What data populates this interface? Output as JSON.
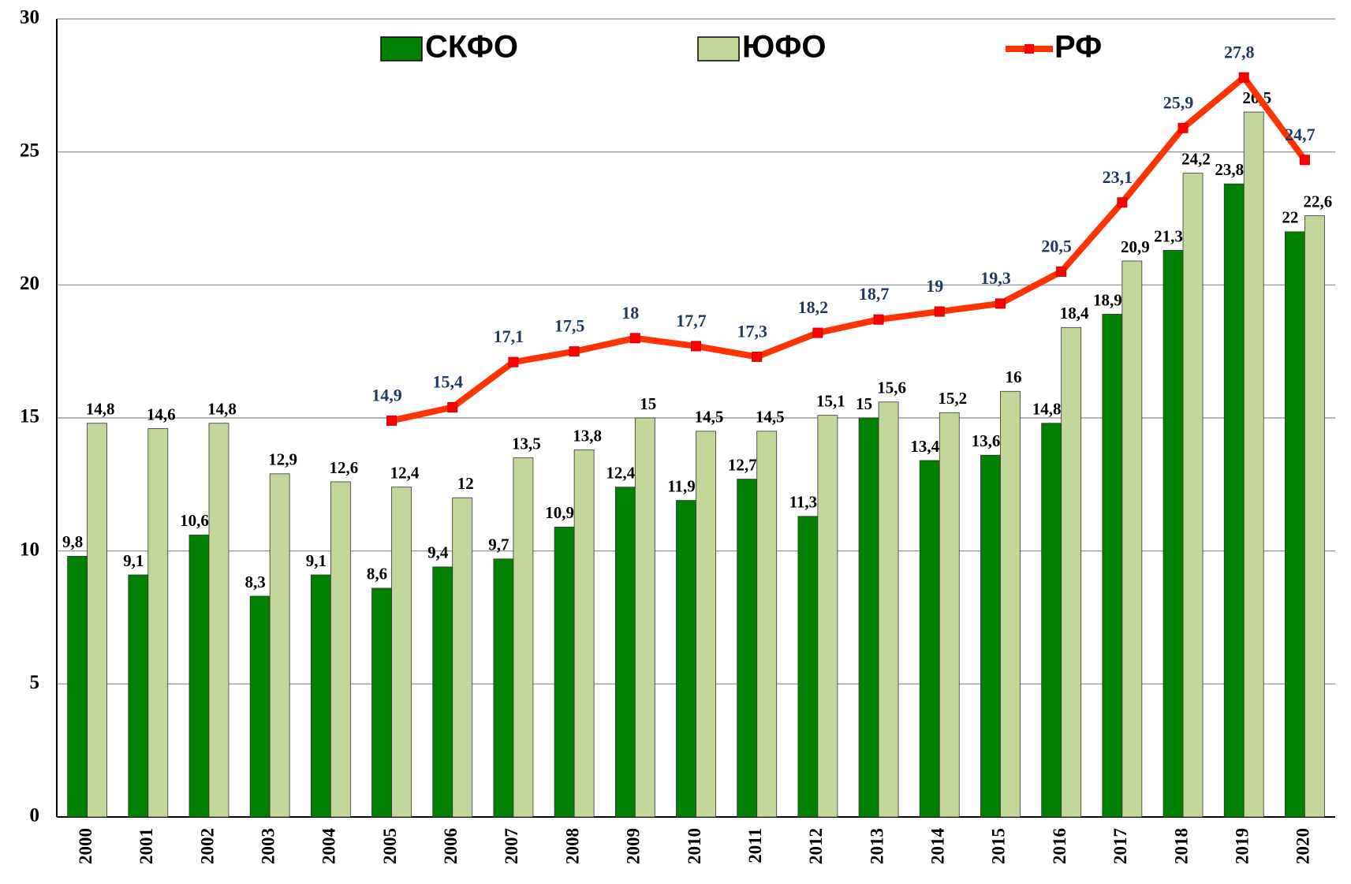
{
  "chart_data": {
    "type": "bar-line",
    "categories": [
      "2000",
      "2001",
      "2002",
      "2003",
      "2004",
      "2005",
      "2006",
      "2007",
      "2008",
      "2009",
      "2010",
      "2011",
      "2012",
      "2013",
      "2014",
      "2015",
      "2016",
      "2017",
      "2018",
      "2019",
      "2020"
    ],
    "series": [
      {
        "name": "СКФО",
        "color": "#008000",
        "type": "bar",
        "values": [
          9.8,
          9.1,
          10.6,
          8.3,
          9.1,
          8.6,
          9.4,
          9.7,
          10.9,
          12.4,
          11.9,
          12.7,
          11.3,
          15,
          13.4,
          13.6,
          14.8,
          18.9,
          21.3,
          23.8,
          22
        ],
        "value_labels": [
          "9,8",
          "9,1",
          "10,6",
          "8,3",
          "9,1",
          "8,6",
          "9,4",
          "9,7",
          "10,9",
          "12,4",
          "11,9",
          "12,7",
          "11,3",
          "15",
          "13,4",
          "13,6",
          "14,8",
          "18,9",
          "21,3",
          "23,8",
          "22"
        ]
      },
      {
        "name": "ЮФО",
        "color": "#c4d79b",
        "type": "bar",
        "values": [
          14.8,
          14.6,
          14.8,
          12.9,
          12.6,
          12.4,
          12,
          13.5,
          13.8,
          15,
          14.5,
          14.5,
          15.1,
          15.6,
          15.2,
          16,
          18.4,
          20.9,
          24.2,
          26.5,
          22.6
        ],
        "value_labels": [
          "14,8",
          "14,6",
          "14,8",
          "12,9",
          "12,6",
          "12,4",
          "12",
          "13,5",
          "13,8",
          "15",
          "14,5",
          "14,5",
          "15,1",
          "15,6",
          "15,2",
          "16",
          "18,4",
          "20,9",
          "24,2",
          "26,5",
          "22,6"
        ]
      },
      {
        "name": "РФ",
        "color": "#ff3300",
        "type": "line",
        "values": [
          null,
          null,
          null,
          null,
          null,
          14.9,
          15.4,
          17.1,
          17.5,
          18,
          17.7,
          17.3,
          18.2,
          18.7,
          19,
          19.3,
          20.5,
          23.1,
          25.9,
          27.8,
          24.7
        ],
        "value_labels": [
          null,
          null,
          null,
          null,
          null,
          "14,9",
          "15,4",
          "17,1",
          "17,5",
          "18",
          "17,7",
          "17,3",
          "18,2",
          "18,7",
          "19",
          "19,3",
          "20,5",
          "23,1",
          "25,9",
          "27,8",
          "24,7"
        ]
      }
    ],
    "ylim": [
      0,
      30
    ],
    "yticks": [
      0,
      5,
      10,
      15,
      20,
      25,
      30
    ],
    "grid": true,
    "legend": "top"
  }
}
